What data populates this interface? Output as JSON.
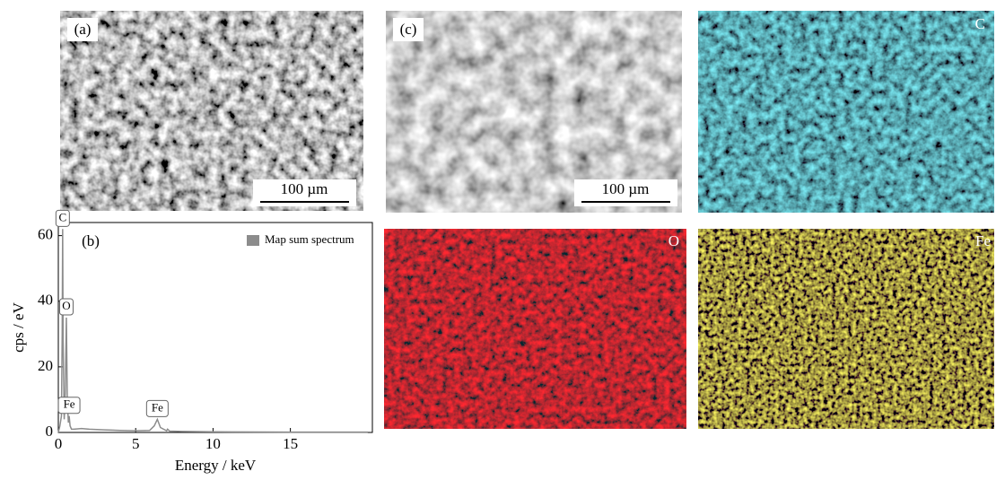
{
  "panels": {
    "a": {
      "label": "(a)",
      "scale_bar": "100 µm"
    },
    "c": {
      "label": "(c)",
      "scale_bar": "100 µm"
    },
    "maps": [
      "C",
      "O",
      "Fe"
    ]
  },
  "chart_data": {
    "type": "line",
    "panel_label": "(b)",
    "x_label": "Energy / keV",
    "y_label": "cps / eV",
    "x": [
      0,
      0.1,
      0.2,
      0.25,
      0.28,
      0.31,
      0.38,
      0.45,
      0.52,
      0.58,
      0.65,
      0.7,
      0.76,
      0.85,
      1,
      1.5,
      2,
      3,
      4,
      5,
      5.9,
      6.2,
      6.4,
      6.6,
      7,
      7.06,
      7.2,
      8,
      10,
      15,
      20
    ],
    "series": [
      {
        "name": "Map sum spectrum",
        "color": "#8c8c8c",
        "values": [
          0,
          2,
          5,
          30,
          62,
          28,
          4,
          12,
          35,
          10,
          3,
          5,
          2,
          1,
          1,
          1.2,
          1,
          0.8,
          0.6,
          0.5,
          0.6,
          2,
          4,
          1.5,
          0.5,
          1,
          0.4,
          0.3,
          0.2,
          0.1,
          0.1
        ]
      }
    ],
    "annotations": [
      {
        "text": "C",
        "x": 0.28,
        "y": 62
      },
      {
        "text": "O",
        "x": 0.52,
        "y": 35
      },
      {
        "text": "Fe",
        "x": 0.7,
        "y": 5
      },
      {
        "text": "Fe",
        "x": 6.4,
        "y": 4
      }
    ],
    "xlim": [
      0,
      20.3
    ],
    "ylim": [
      0,
      64
    ],
    "xticks": [
      0,
      5,
      10,
      15
    ],
    "yticks": [
      0,
      20,
      40,
      60
    ],
    "legend": "upper right"
  }
}
